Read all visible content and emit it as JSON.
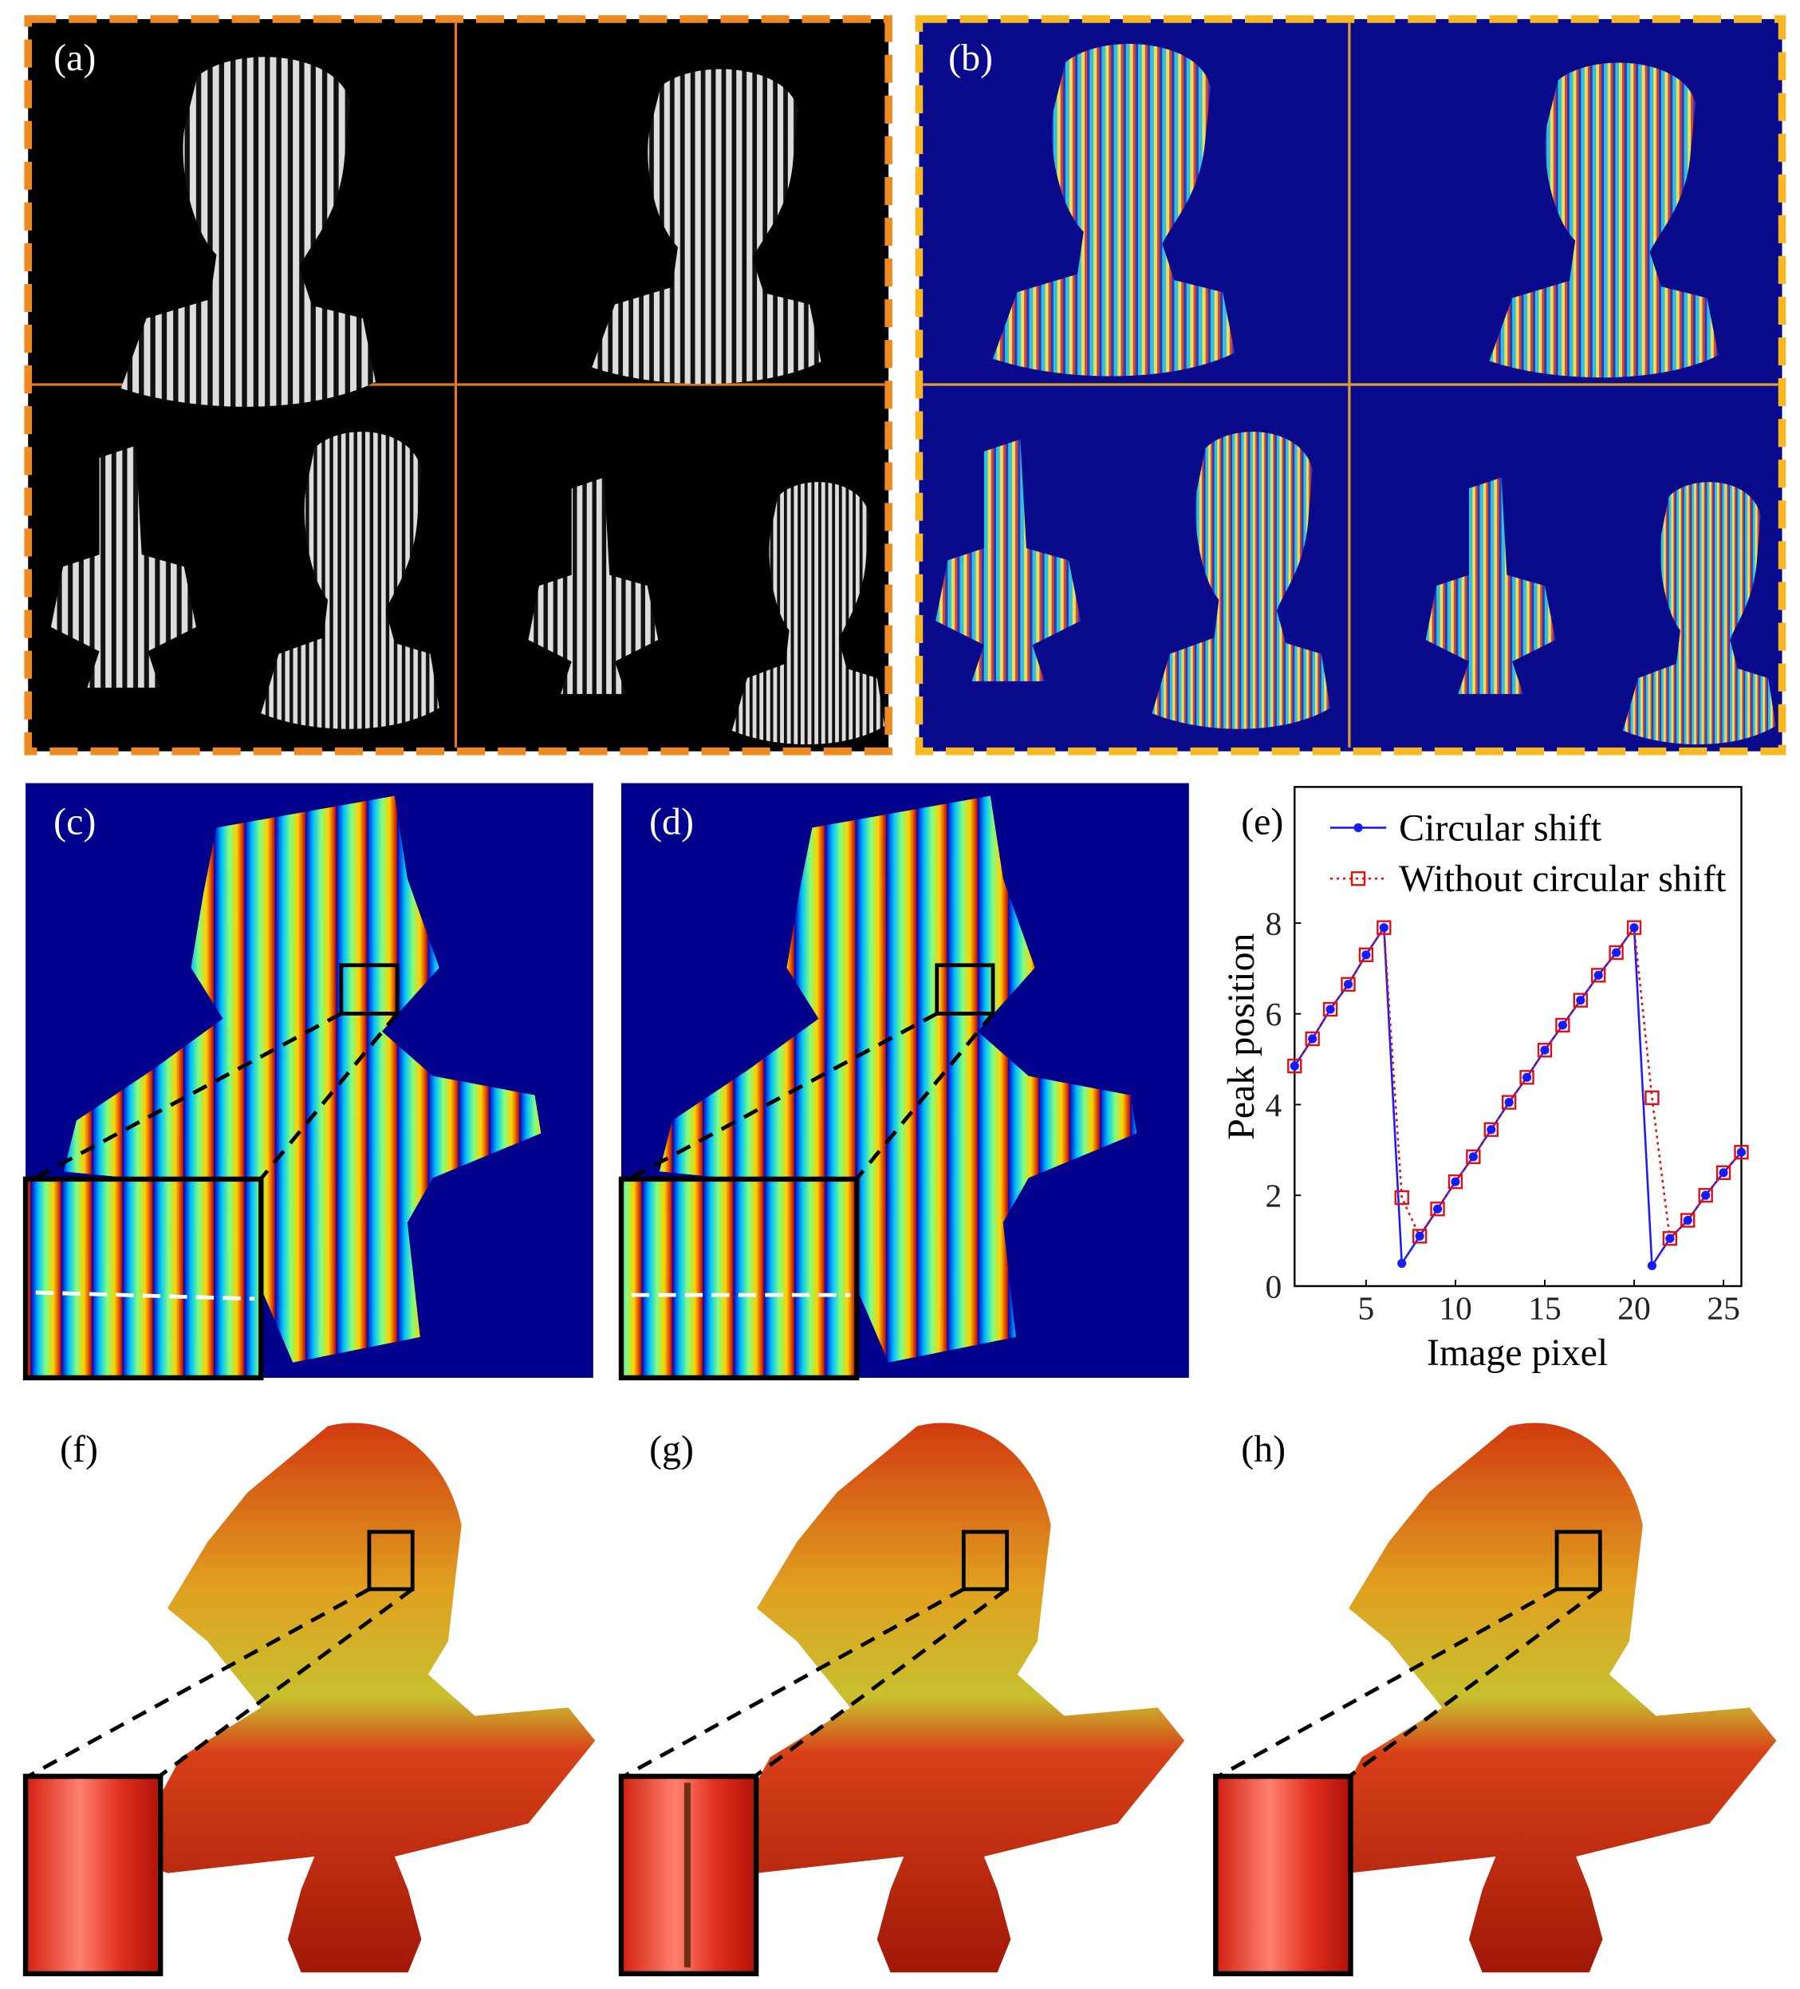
{
  "panels": {
    "labels": [
      "(a)",
      "(b)",
      "(c)",
      "(d)",
      "(e)",
      "(f)",
      "(g)",
      "(h)"
    ]
  },
  "chart_data": {
    "type": "line",
    "xlabel": "Image pixel",
    "ylabel": "Peak position",
    "x": [
      1,
      2,
      3,
      4,
      5,
      6,
      7,
      8,
      9,
      10,
      11,
      12,
      13,
      14,
      15,
      16,
      17,
      18,
      19,
      20,
      21,
      22,
      23,
      24,
      25,
      26
    ],
    "series": [
      {
        "name": "Circular shift",
        "color": "#1a1aff",
        "line_style": "solid",
        "marker": "circle",
        "values": [
          4.85,
          5.45,
          6.1,
          6.65,
          7.3,
          7.9,
          0.5,
          1.1,
          1.7,
          2.3,
          2.85,
          3.45,
          4.05,
          4.6,
          5.2,
          5.75,
          6.3,
          6.85,
          7.35,
          7.9,
          0.45,
          1.05,
          1.45,
          2.0,
          2.5,
          2.95
        ]
      },
      {
        "name": "Without circular shift",
        "color": "#e01010",
        "line_style": "dotted",
        "marker": "square",
        "values": [
          4.85,
          5.45,
          6.1,
          6.65,
          7.3,
          7.9,
          1.95,
          1.1,
          1.7,
          2.3,
          2.85,
          3.45,
          4.05,
          4.6,
          5.2,
          5.75,
          6.3,
          6.85,
          7.35,
          7.9,
          4.15,
          1.05,
          1.45,
          2.0,
          2.5,
          2.95
        ]
      }
    ],
    "xlim": [
      1,
      26
    ],
    "xticks": [
      5,
      10,
      15,
      20,
      25
    ],
    "ylim": [
      0,
      11
    ],
    "yticks": [
      0,
      2,
      4,
      6,
      8
    ],
    "legend": "upper left"
  }
}
